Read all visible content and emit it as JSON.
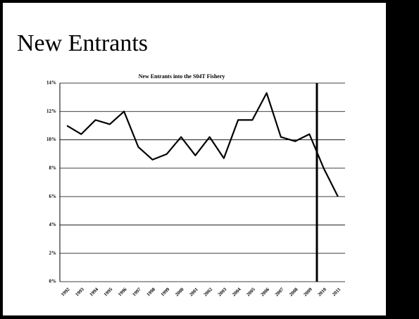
{
  "slide_title": "New Entrants",
  "chart_data": {
    "type": "line",
    "title": "New Entrants into the S04T Fishery",
    "categories": [
      "1992",
      "1993",
      "1994",
      "1995",
      "1996",
      "1997",
      "1998",
      "1999",
      "2000",
      "2001",
      "2002",
      "2003",
      "2004",
      "2005",
      "2006",
      "2007",
      "2008",
      "2009",
      "2010",
      "2011"
    ],
    "values": [
      11.0,
      10.4,
      11.4,
      11.1,
      12.0,
      9.5,
      8.6,
      9.0,
      10.2,
      8.9,
      10.2,
      8.7,
      11.4,
      11.4,
      13.3,
      10.2,
      9.9,
      10.4,
      8.0,
      6.0
    ],
    "color": "#000000",
    "ylim": [
      0,
      14
    ],
    "yticks": [
      {
        "value": 0,
        "label": "0%"
      },
      {
        "value": 2,
        "label": "2%"
      },
      {
        "value": 4,
        "label": "4%"
      },
      {
        "value": 6,
        "label": "6%"
      },
      {
        "value": 8,
        "label": "8%"
      },
      {
        "value": 10,
        "label": "10%"
      },
      {
        "value": 12,
        "label": "12%"
      },
      {
        "value": 14,
        "label": "14%"
      }
    ],
    "grid": true
  }
}
